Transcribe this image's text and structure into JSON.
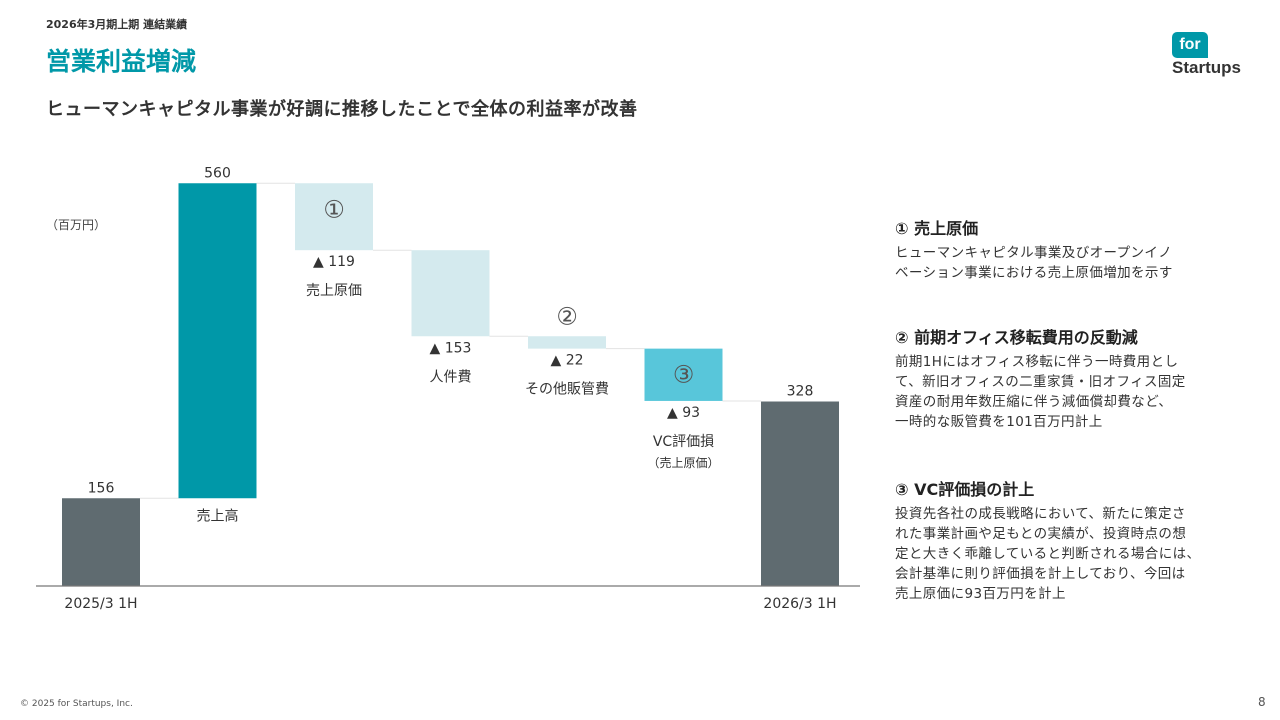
{
  "header": {
    "subheader": "2026年3月期上期 連結業績",
    "title": "営業利益増減",
    "lead": "ヒューマンキャピタル事業が好調に推移したことで全体の利益率が改善",
    "unit": "（百万円）"
  },
  "logo": {
    "top": "for",
    "bottom": "Startups"
  },
  "colors": {
    "accent": "#0098a8",
    "total": "#5f6b70",
    "light": "#d4eaee",
    "vc": "#58c6da"
  },
  "chart_data": {
    "type": "bar",
    "subtype": "waterfall",
    "unit": "百万円",
    "ylim": [
      0,
      640
    ],
    "steps": [
      {
        "id": "start",
        "kind": "total",
        "value": 156,
        "label": "156",
        "xlabel": "2025/3 1H",
        "color": "#5f6b70"
      },
      {
        "id": "sales",
        "kind": "increase",
        "value": 560,
        "label": "560",
        "xlabel": "売上高",
        "color": "#0098a8"
      },
      {
        "id": "cogs",
        "kind": "decrease",
        "value": 119,
        "label": "▲ 119",
        "xlabel": "売上原価",
        "marker": "①",
        "color": "#d4eaee"
      },
      {
        "id": "personnel",
        "kind": "decrease",
        "value": 153,
        "label": "▲ 153",
        "xlabel": "人件費",
        "color": "#d4eaee"
      },
      {
        "id": "other_sga",
        "kind": "decrease",
        "value": 22,
        "label": "▲ 22",
        "xlabel": "その他販管費",
        "marker": "②",
        "color": "#d4eaee"
      },
      {
        "id": "vc_loss",
        "kind": "decrease",
        "value": 93,
        "label": "▲ 93",
        "xlabel": "VC評価損",
        "xlabel2": "（売上原価）",
        "marker": "③",
        "color": "#58c6da"
      },
      {
        "id": "end",
        "kind": "total",
        "value": 328,
        "label": "328",
        "xlabel": "2026/3 1H",
        "color": "#5f6b70"
      }
    ]
  },
  "notes": [
    {
      "heading": "① 売上原価",
      "lines": [
        "ヒューマンキャピタル事業及びオープンイノ",
        "ベーション事業における売上原価増加を示す"
      ]
    },
    {
      "heading": "② 前期オフィス移転費用の反動減",
      "lines": [
        "前期1Hにはオフィス移転に伴う一時費用とし",
        "て、新旧オフィスの二重家賃・旧オフィス固定",
        "資産の耐用年数圧縮に伴う減価償却費など、",
        "一時的な販管費を101百万円計上"
      ]
    },
    {
      "heading": "③ VC評価損の計上",
      "lines": [
        "投資先各社の成長戦略において、新たに策定さ",
        "れた事業計画や足もとの実績が、投資時点の想",
        "定と大きく乖離していると判断される場合には、",
        "会計基準に則り評価損を計上しており、今回は",
        "売上原価に93百万円を計上"
      ]
    }
  ],
  "footer": {
    "copyright": "© 2025 for Startups, Inc.",
    "page": "8"
  }
}
